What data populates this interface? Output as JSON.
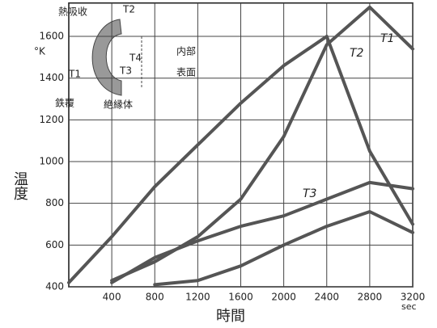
{
  "chart_data": {
    "type": "line",
    "x_label": "時間",
    "y_label": "温度",
    "x_unit": "sec",
    "y_unit": "°K",
    "xlim": [
      0,
      3200
    ],
    "xticks": [
      400,
      800,
      1200,
      1600,
      2000,
      2400,
      2800,
      3200
    ],
    "ylim": [
      400,
      1760
    ],
    "yticks": [
      400,
      600,
      800,
      1000,
      1200,
      1400,
      1600
    ],
    "grid": true,
    "x": [
      0,
      400,
      800,
      1200,
      1600,
      2000,
      2400,
      2800,
      3200
    ],
    "series": [
      {
        "name": "T1",
        "color": "#555555",
        "values": [
          null,
          430,
          520,
          640,
          820,
          1120,
          1560,
          1740,
          1540
        ]
      },
      {
        "name": "T2",
        "color": "#555555",
        "values": [
          420,
          640,
          880,
          1080,
          1280,
          1460,
          1600,
          1050,
          700
        ]
      },
      {
        "name": "T3",
        "color": "#555555",
        "values": [
          null,
          420,
          540,
          620,
          690,
          740,
          820,
          900,
          870
        ]
      },
      {
        "color": "#555555",
        "values": [
          null,
          null,
          410,
          430,
          500,
          600,
          690,
          760,
          660
        ]
      }
    ],
    "annotations": [
      "熱吸收",
      "T2",
      "T1",
      "T4",
      "T3",
      "内部",
      "表面",
      "鉄覆",
      "絶縁体"
    ]
  }
}
